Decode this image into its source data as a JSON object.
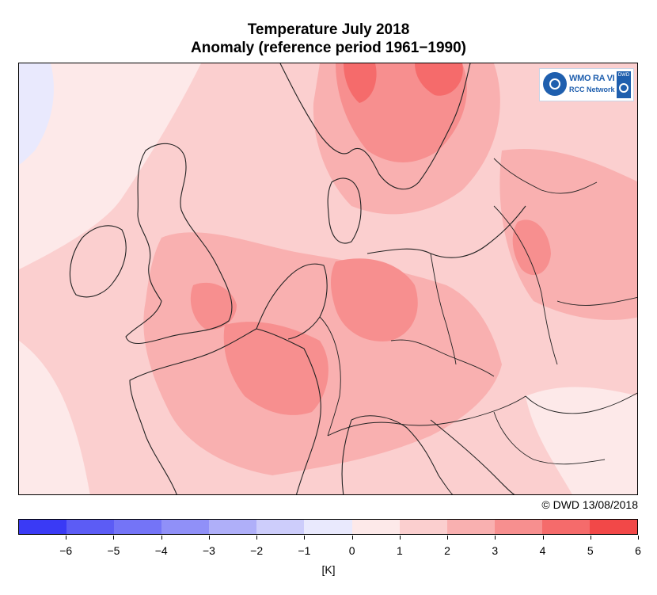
{
  "title": {
    "line1": "Temperature July 2018",
    "line2": "Anomaly (reference period 1961−1990)"
  },
  "logo": {
    "wmo_text": "WMO RA VI",
    "network_text": "RCC Network",
    "dwd_text": "DWD",
    "emblem_icon": "wmo-emblem-icon",
    "spiral_icon": "dwd-spiral-icon"
  },
  "copyright": "© DWD 13/08/2018",
  "legend": {
    "unit": "[K]",
    "ticks": [
      "−6",
      "−5",
      "−4",
      "−3",
      "−2",
      "−1",
      "0",
      "1",
      "2",
      "3",
      "4",
      "5",
      "6"
    ],
    "colors": [
      "#3a3af5",
      "#5c5cf5",
      "#7474f7",
      "#9090f8",
      "#afaff9",
      "#cdcdfb",
      "#e9e9fd",
      "#fde9e9",
      "#fbcfcf",
      "#f9b0b0",
      "#f78f8f",
      "#f56b6b",
      "#f24848"
    ]
  },
  "map": {
    "region": "Europe",
    "background_anomaly_color": "#fbcfcf",
    "warmest_areas": [
      "Scandinavia",
      "Benelux",
      "Northern France",
      "Germany"
    ],
    "coolest_area": "North Atlantic (northwest corner)"
  }
}
